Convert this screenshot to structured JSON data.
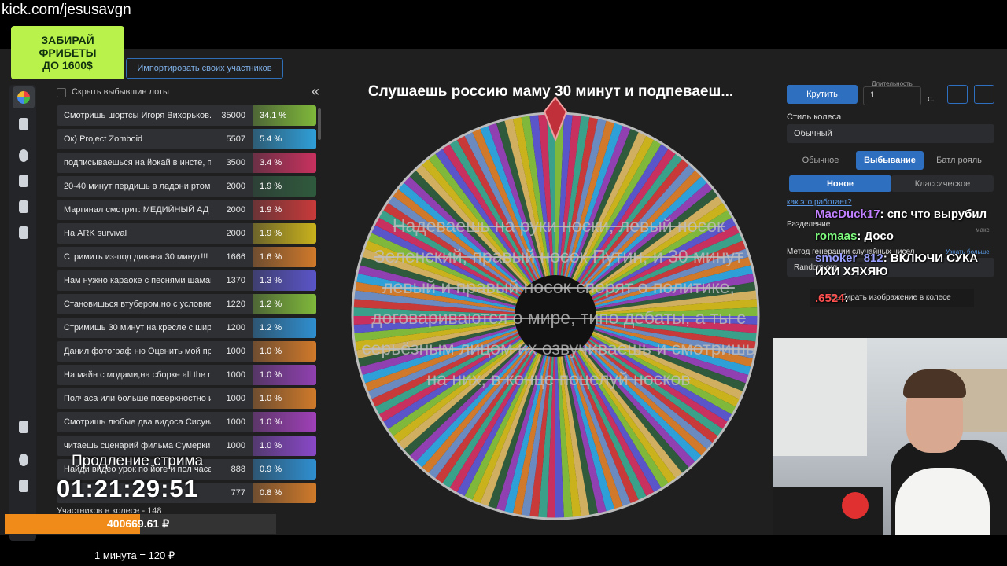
{
  "header": {
    "url": "kick.com/jesusavgn",
    "promo": "ЗАБИРАЙ ФРИБЕТЫ ДО 1600$"
  },
  "left_panel": {
    "import_button": "Импортировать своих участников",
    "hide_label": "Скрыть выбывшие лоты",
    "collapse": "«",
    "lots": [
      {
        "name": "Смотришь шортсы Игоря Вихорьков...",
        "amount": "35000",
        "percent": "34.1 %",
        "color": "#7fb83a"
      },
      {
        "name": "Ок) Project Zomboid",
        "amount": "5507",
        "percent": "5.4 %",
        "color": "#2f9fd8"
      },
      {
        "name": "подписываешься на йокай в инсте, пи...",
        "amount": "3500",
        "percent": "3.4 %",
        "color": "#c8315f"
      },
      {
        "name": "20-40 минут пердишь в ладони ртом ...",
        "amount": "2000",
        "percent": "1.9 %",
        "color": "#2f5a3c"
      },
      {
        "name": "Маргинал смотрит: МЕДИЙНЫЙ АД 3...",
        "amount": "2000",
        "percent": "1.9 %",
        "color": "#c83a3a"
      },
      {
        "name": "На ARK survival",
        "amount": "2000",
        "percent": "1.9 %",
        "color": "#c9b21c"
      },
      {
        "name": "Стримить из-под дивана 30 минут!!!",
        "amount": "1666",
        "percent": "1.6 %",
        "color": "#d0792a"
      },
      {
        "name": "Нам нужно караоке с песнями шамана",
        "amount": "1370",
        "percent": "1.3 %",
        "color": "#5a55c8"
      },
      {
        "name": "Становишься втубером,но с условие...",
        "amount": "1220",
        "percent": "1.2 %",
        "color": "#7fb83a"
      },
      {
        "name": "Стримишь 30 минут на кресле с широ...",
        "amount": "1200",
        "percent": "1.2 %",
        "color": "#2f8fd0"
      },
      {
        "name": "Данил фотограф ню Оценить мой про...",
        "amount": "1000",
        "percent": "1.0 %",
        "color": "#d0792a"
      },
      {
        "name": "На майн с модами,на сборке all the m...",
        "amount": "1000",
        "percent": "1.0 %",
        "color": "#9040b0"
      },
      {
        "name": "Полчаса или больше поверхностно и...",
        "amount": "1000",
        "percent": "1.0 %",
        "color": "#d07a2a"
      },
      {
        "name": "Смотришь любые два видоса Сисуна,...",
        "amount": "1000",
        "percent": "1.0 %",
        "color": "#a040b8"
      },
      {
        "name": "читаешь сценарий фильма Сумерки и...",
        "amount": "1000",
        "percent": "1.0 %",
        "color": "#8a48c8"
      },
      {
        "name": "Найди видео урок по йоге и пол часа з...",
        "amount": "888",
        "percent": "0.9 %",
        "color": "#2f8fd0"
      },
      {
        "amount": "777",
        "percent": "0.8 %",
        "color": "#d07a2a"
      }
    ]
  },
  "wheel": {
    "title": "Слушаешь россию маму 30 минут и подпеваеш...",
    "overlay": "Надеваешь на руки носки, левый носок Зеленский, правый носок Путин, и 30 минут левый и правый носок спорят о политике, договариваются о мире, типо дебаты, а ты с серьёзным лицом их озвучиваешь и смотришь на них, в конце поцелуй носков"
  },
  "controls": {
    "spin": "Крутить",
    "duration_label": "Длительность",
    "duration": "1",
    "unit": "с.",
    "style_label": "Стиль колеса",
    "style": "Обычный",
    "modes": [
      "Обычное",
      "Выбывание",
      "Батл рояль"
    ],
    "submodes": [
      "Новое",
      "Классическое"
    ],
    "help": "как это работает?",
    "split": "Разделение",
    "max": "макс",
    "rng_label": "Метод генерации случайных чисел",
    "learn_more": "Узнать больше",
    "rng": "Random.org",
    "image_option": "Выбирать изображение в колесе"
  },
  "chat": [
    {
      "user": "MacDuck17",
      "text": ": спс что вырубил"
    },
    {
      "user": "romaas",
      "text": ": Досо"
    },
    {
      "user": "smoker_812",
      "text": ": ВКЛЮЧИ СУКА ИХИ ХЯХЯЮ"
    },
    {
      "user": ".6524",
      "text": ":"
    }
  ],
  "overlay": {
    "extension": "Продление стрима",
    "timer": "01:21:29:51",
    "participants": "Участников в колесе - 148",
    "total": "400669.61 ₽",
    "rate": "1 минута = 120 ₽"
  }
}
